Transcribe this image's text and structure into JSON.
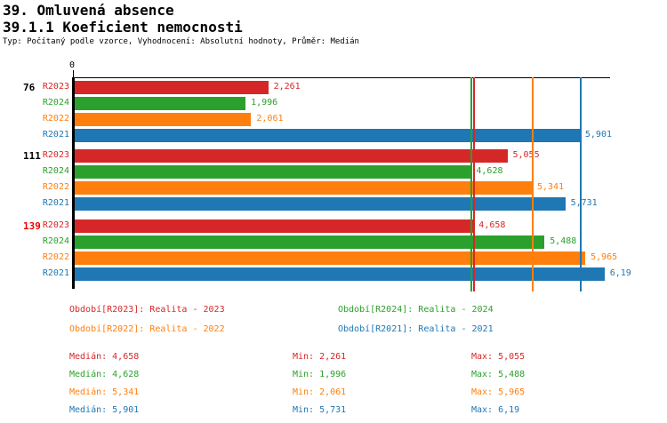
{
  "header": {
    "title": "39. Omluvená absence",
    "subtitle": "39.1.1 Koeficient nemocnosti",
    "meta": "Typ: Počítaný podle vzorce, Vyhodnocení: Absolutní hodnoty, Průměr: Medián"
  },
  "colors": {
    "r2023": "#d62728",
    "r2024": "#2ca02c",
    "r2022": "#ff7f0e",
    "r2021": "#1f77b4",
    "axis": "#000000",
    "alert_group_label": "#ee0000"
  },
  "chart_data": {
    "type": "bar",
    "orientation": "horizontal",
    "x_axis": {
      "zero_label": "0",
      "xmin": 0,
      "xmax": 6.255,
      "grid": false
    },
    "series_names": [
      "R2023",
      "R2024",
      "R2022",
      "R2021"
    ],
    "groups": [
      {
        "label": "76",
        "label_color": "#000000",
        "bars": [
          {
            "series": "R2023",
            "value": 2.261,
            "display": "2,261",
            "color": "#d62728"
          },
          {
            "series": "R2024",
            "value": 1.996,
            "display": "1,996",
            "color": "#2ca02c"
          },
          {
            "series": "R2022",
            "value": 2.061,
            "display": "2,061",
            "color": "#ff7f0e"
          },
          {
            "series": "R2021",
            "value": 5.901,
            "display": "5,901",
            "color": "#1f77b4"
          }
        ]
      },
      {
        "label": "111",
        "label_color": "#000000",
        "bars": [
          {
            "series": "R2023",
            "value": 5.055,
            "display": "5,055",
            "color": "#d62728"
          },
          {
            "series": "R2024",
            "value": 4.628,
            "display": "4,628",
            "color": "#2ca02c"
          },
          {
            "series": "R2022",
            "value": 5.341,
            "display": "5,341",
            "color": "#ff7f0e"
          },
          {
            "series": "R2021",
            "value": 5.731,
            "display": "5,731",
            "color": "#1f77b4"
          }
        ]
      },
      {
        "label": "139",
        "label_color": "#ee0000",
        "bars": [
          {
            "series": "R2023",
            "value": 4.658,
            "display": "4,658",
            "color": "#d62728"
          },
          {
            "series": "R2024",
            "value": 5.488,
            "display": "5,488",
            "color": "#2ca02c"
          },
          {
            "series": "R2022",
            "value": 5.965,
            "display": "5,965",
            "color": "#ff7f0e"
          },
          {
            "series": "R2021",
            "value": 6.19,
            "display": "6,19",
            "color": "#1f77b4"
          }
        ]
      }
    ],
    "median_lines": [
      {
        "series": "R2024",
        "value": 4.628,
        "color": "#2ca02c"
      },
      {
        "series": "R2023",
        "value": 4.658,
        "color": "#d62728"
      },
      {
        "series": "R2022",
        "value": 5.341,
        "color": "#ff7f0e"
      },
      {
        "series": "R2021",
        "value": 5.901,
        "color": "#1f77b4"
      }
    ]
  },
  "legend": {
    "items": [
      {
        "text": "Období[R2023]: Realita - 2023",
        "color": "#d62728"
      },
      {
        "text": "Období[R2024]: Realita - 2024",
        "color": "#2ca02c"
      },
      {
        "text": "Období[R2022]: Realita - 2022",
        "color": "#ff7f0e"
      },
      {
        "text": "Období[R2021]: Realita - 2021",
        "color": "#1f77b4"
      }
    ]
  },
  "stats": {
    "rows": [
      {
        "series": "R2023",
        "color": "#d62728",
        "median": "Medián: 4,658",
        "min": "Min: 2,261",
        "max": "Max: 5,055"
      },
      {
        "series": "R2024",
        "color": "#2ca02c",
        "median": "Medián: 4,628",
        "min": "Min: 1,996",
        "max": "Max: 5,488"
      },
      {
        "series": "R2022",
        "color": "#ff7f0e",
        "median": "Medián: 5,341",
        "min": "Min: 2,061",
        "max": "Max: 5,965"
      },
      {
        "series": "R2021",
        "color": "#1f77b4",
        "median": "Medián: 5,901",
        "min": "Min: 5,731",
        "max": "Max: 6,19"
      }
    ]
  }
}
